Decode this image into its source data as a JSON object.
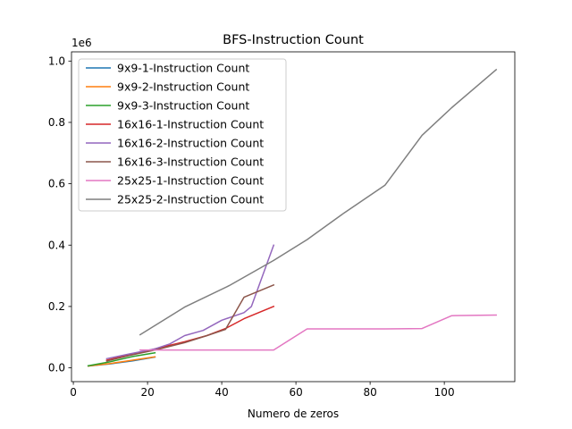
{
  "chart_data": {
    "type": "line",
    "title": "BFS-Instruction Count",
    "xlabel": "Numero de zeros",
    "ylabel": "",
    "offset_text": "1e6",
    "xlim": [
      -0.5,
      119
    ],
    "ylim": [
      -0.045,
      1.03
    ],
    "x_ticks": [
      0,
      20,
      40,
      60,
      80,
      100
    ],
    "y_ticks": [
      0.0,
      0.2,
      0.4,
      0.6,
      0.8,
      1.0
    ],
    "y_tick_labels": [
      "0.0",
      "0.2",
      "0.4",
      "0.6",
      "0.8",
      "1.0"
    ],
    "grid": false,
    "legend_position": "top-left",
    "series": [
      {
        "name": "9x9-1-Instruction Count",
        "color": "#1f77b4",
        "x": [
          4,
          10,
          16,
          22
        ],
        "y": [
          0.006,
          0.013,
          0.023,
          0.035
        ]
      },
      {
        "name": "9x9-2-Instruction Count",
        "color": "#ff7f0e",
        "x": [
          4,
          10,
          16,
          22
        ],
        "y": [
          0.006,
          0.014,
          0.025,
          0.036
        ]
      },
      {
        "name": "9x9-3-Instruction Count",
        "color": "#2ca02c",
        "x": [
          4,
          10,
          16,
          22
        ],
        "y": [
          0.007,
          0.02,
          0.037,
          0.049
        ]
      },
      {
        "name": "16x16-1-Instruction Count",
        "color": "#d62728",
        "x": [
          9,
          15,
          22,
          30,
          36,
          41,
          46,
          54
        ],
        "y": [
          0.025,
          0.042,
          0.062,
          0.085,
          0.105,
          0.128,
          0.16,
          0.2
        ]
      },
      {
        "name": "16x16-2-Instruction Count",
        "color": "#9467bd",
        "x": [
          9,
          15,
          22,
          26,
          30,
          35,
          40,
          46,
          48,
          54
        ],
        "y": [
          0.03,
          0.045,
          0.062,
          0.078,
          0.105,
          0.122,
          0.155,
          0.18,
          0.2,
          0.4
        ]
      },
      {
        "name": "16x16-3-Instruction Count",
        "color": "#8c564b",
        "x": [
          9,
          15,
          22,
          30,
          36,
          41,
          46,
          54
        ],
        "y": [
          0.022,
          0.04,
          0.058,
          0.082,
          0.105,
          0.125,
          0.23,
          0.27
        ]
      },
      {
        "name": "25x25-1-Instruction Count",
        "color": "#e377c2",
        "x": [
          18,
          26,
          36,
          46,
          54,
          63,
          73,
          84,
          94,
          102,
          114
        ],
        "y": [
          0.058,
          0.058,
          0.058,
          0.058,
          0.058,
          0.127,
          0.127,
          0.127,
          0.128,
          0.17,
          0.172
        ]
      },
      {
        "name": "25x25-2-Instruction Count",
        "color": "#7f7f7f",
        "x": [
          18,
          30,
          42,
          54,
          63,
          73,
          84,
          94,
          102,
          114
        ],
        "y": [
          0.108,
          0.198,
          0.268,
          0.35,
          0.418,
          0.505,
          0.595,
          0.758,
          0.848,
          0.972
        ]
      }
    ]
  }
}
